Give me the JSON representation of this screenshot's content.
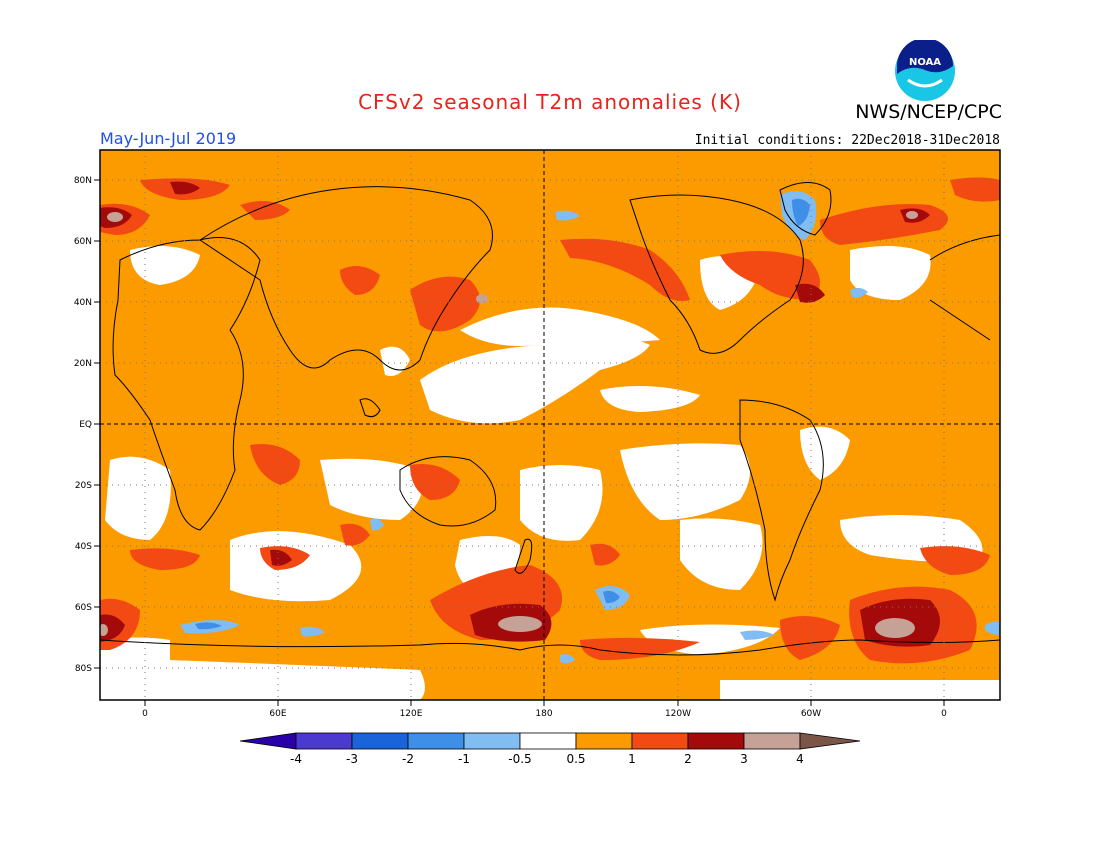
{
  "title": "CFSv2 seasonal T2m anomalies (K)",
  "agency": "NWS/NCEP/CPC",
  "logo_text": "NOAA",
  "period": "May-Jun-Jul 2019",
  "initial_conditions": "Initial conditions: 22Dec2018-31Dec2018",
  "lat_labels": [
    "80N",
    "60N",
    "40N",
    "20N",
    "EQ",
    "20S",
    "40S",
    "60S",
    "80S"
  ],
  "lon_labels": [
    "0",
    "60E",
    "120E",
    "180",
    "120W",
    "60W",
    "0"
  ],
  "colorbar": {
    "colors": [
      "#2a00a8",
      "#4a3ad0",
      "#1a63d8",
      "#3f8ee8",
      "#80bdf2",
      "#ffffff",
      "#fb9b00",
      "#f24a12",
      "#a40a0a",
      "#c6a195",
      "#7a5548"
    ],
    "labels": [
      "-4",
      "-3",
      "-2",
      "-1",
      "-0.5",
      "0.5",
      "1",
      "2",
      "3",
      "4"
    ]
  }
}
